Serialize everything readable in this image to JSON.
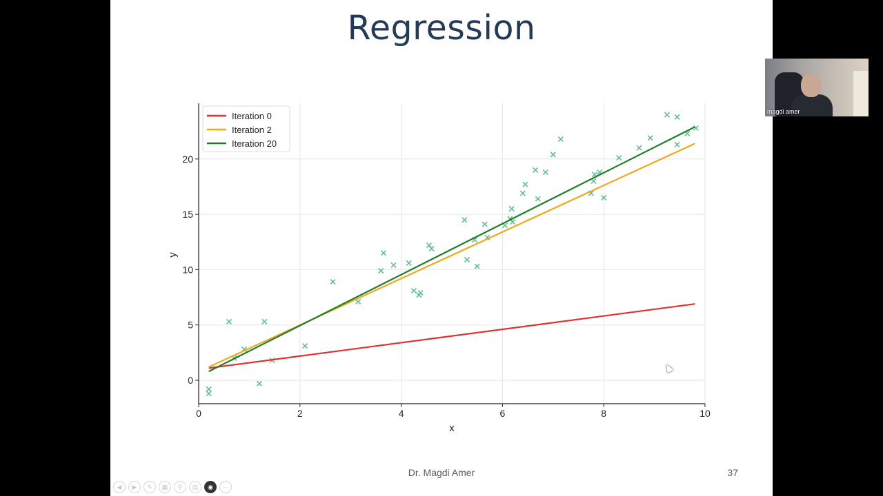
{
  "slide": {
    "title": "Regression",
    "footer_author": "Dr. Magdi Amer",
    "page_number": "37"
  },
  "webcam": {
    "participant_name": "magdi amer"
  },
  "presenter_controls": [
    "previous-icon",
    "next-icon",
    "pen-icon",
    "slides-icon",
    "zoom-icon",
    "subtitles-icon",
    "camera-icon",
    "more-icon"
  ],
  "chart_data": {
    "type": "scatter",
    "xlabel": "x",
    "ylabel": "y",
    "xlim": [
      0,
      10
    ],
    "ylim": [
      -2,
      25
    ],
    "xticks": [
      0,
      2,
      4,
      6,
      8,
      10
    ],
    "yticks": [
      0,
      5,
      10,
      15,
      20
    ],
    "grid": true,
    "legend_position": "top-left",
    "points_color": "#5fbf95",
    "points": [
      [
        0.2,
        -0.8
      ],
      [
        0.2,
        -1.2
      ],
      [
        0.6,
        5.3
      ],
      [
        0.7,
        2.0
      ],
      [
        0.9,
        2.8
      ],
      [
        1.2,
        -0.3
      ],
      [
        1.3,
        5.3
      ],
      [
        1.45,
        1.8
      ],
      [
        2.1,
        3.1
      ],
      [
        2.65,
        8.9
      ],
      [
        3.15,
        7.1
      ],
      [
        3.6,
        9.9
      ],
      [
        3.65,
        11.5
      ],
      [
        3.85,
        10.4
      ],
      [
        4.15,
        10.6
      ],
      [
        4.25,
        8.1
      ],
      [
        4.35,
        7.7
      ],
      [
        4.38,
        7.9
      ],
      [
        4.55,
        12.2
      ],
      [
        4.6,
        11.9
      ],
      [
        5.25,
        14.5
      ],
      [
        5.3,
        10.9
      ],
      [
        5.45,
        12.7
      ],
      [
        5.5,
        10.3
      ],
      [
        5.65,
        14.1
      ],
      [
        5.7,
        12.9
      ],
      [
        6.05,
        14.0
      ],
      [
        6.15,
        14.6
      ],
      [
        6.18,
        15.5
      ],
      [
        6.2,
        14.3
      ],
      [
        6.4,
        16.9
      ],
      [
        6.45,
        17.7
      ],
      [
        6.65,
        19.0
      ],
      [
        6.7,
        16.4
      ],
      [
        6.85,
        18.8
      ],
      [
        7.0,
        20.4
      ],
      [
        7.15,
        21.8
      ],
      [
        7.75,
        16.9
      ],
      [
        7.8,
        18.0
      ],
      [
        7.82,
        18.6
      ],
      [
        7.92,
        18.8
      ],
      [
        8.0,
        16.5
      ],
      [
        8.3,
        20.1
      ],
      [
        8.7,
        21.0
      ],
      [
        8.92,
        21.9
      ],
      [
        9.25,
        24.0
      ],
      [
        9.45,
        23.8
      ],
      [
        9.45,
        21.3
      ],
      [
        9.65,
        22.3
      ],
      [
        9.82,
        22.8
      ]
    ],
    "series": [
      {
        "name": "Iteration 0",
        "color": "#e03030",
        "x": [
          0.2,
          9.8
        ],
        "y": [
          1.1,
          6.9
        ]
      },
      {
        "name": "Iteration 2",
        "color": "#f0a818",
        "x": [
          0.2,
          9.8
        ],
        "y": [
          1.2,
          21.4
        ]
      },
      {
        "name": "Iteration 20",
        "color": "#1e7d2a",
        "x": [
          0.2,
          9.8
        ],
        "y": [
          0.8,
          22.9
        ]
      }
    ]
  }
}
